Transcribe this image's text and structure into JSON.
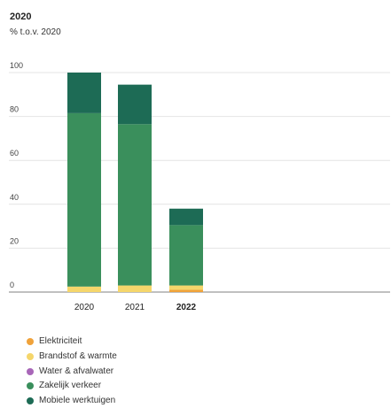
{
  "header": {
    "title": "2020",
    "subtitle": "% t.o.v. 2020"
  },
  "chart_data": {
    "type": "bar",
    "stacked": true,
    "categories": [
      "2020",
      "2021",
      "2022"
    ],
    "highlighted_category": "2022",
    "ylim": [
      0,
      100
    ],
    "yticks": [
      0,
      20,
      40,
      60,
      80,
      100
    ],
    "grid": true,
    "legend_position": "bottom-left",
    "series": [
      {
        "name": "Elektriciteit",
        "color": "#f0a23a",
        "values": [
          0,
          0,
          1
        ]
      },
      {
        "name": "Brandstof & warmte",
        "color": "#f5d66b",
        "values": [
          2.5,
          3,
          2
        ]
      },
      {
        "name": "Water & afvalwater",
        "color": "#a866b8",
        "values": [
          0,
          0,
          0
        ]
      },
      {
        "name": "Zakelijk verkeer",
        "color": "#3a8f5c",
        "values": [
          79,
          73.5,
          27.5
        ]
      },
      {
        "name": "Mobiele werktuigen",
        "color": "#1d6b55",
        "values": [
          18.5,
          18,
          7.5
        ]
      }
    ]
  }
}
